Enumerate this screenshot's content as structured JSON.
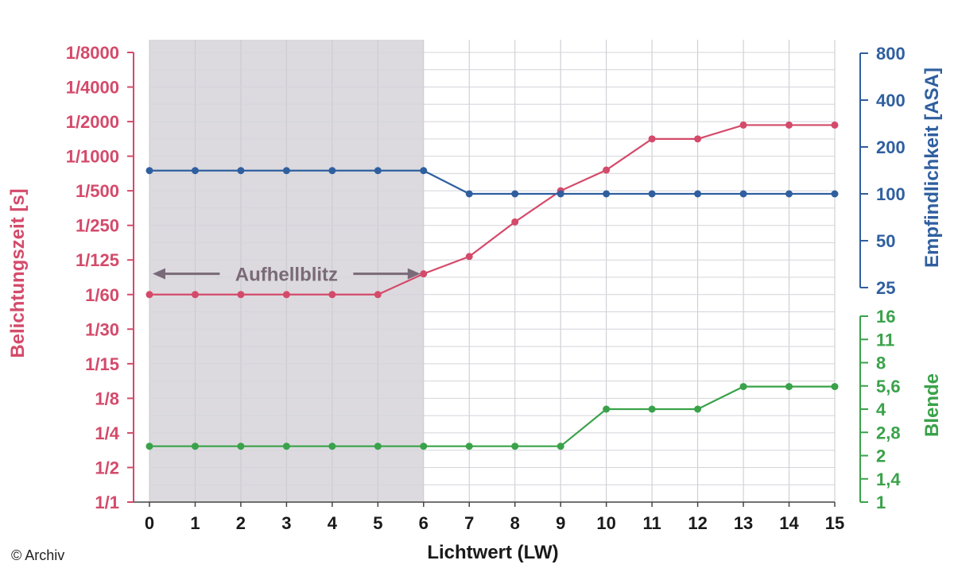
{
  "chart_data": {
    "type": "line",
    "x": [
      0,
      1,
      2,
      3,
      4,
      5,
      6,
      7,
      8,
      9,
      10,
      11,
      12,
      13,
      14,
      15
    ],
    "xlabel": "Lichtwert (LW)",
    "xticks": [
      "0",
      "1",
      "2",
      "3",
      "4",
      "5",
      "6",
      "7",
      "8",
      "9",
      "10",
      "11",
      "12",
      "13",
      "14",
      "15"
    ],
    "left_axis": {
      "label": "Belichtungszeit [s]",
      "ticks": [
        "1/1",
        "1/2",
        "1/4",
        "1/8",
        "1/15",
        "1/30",
        "1/60",
        "1/125",
        "1/250",
        "1/500",
        "1/1000",
        "1/2000",
        "1/4000",
        "1/8000"
      ],
      "ylim_stops": [
        0,
        13
      ]
    },
    "right_top_axis": {
      "label": "Empfindlichkeit [ASA]",
      "ticks": [
        "25",
        "50",
        "100",
        "200",
        "400",
        "800"
      ],
      "ylim_stops": [
        0,
        5
      ]
    },
    "right_bottom_axis": {
      "label": "Blende",
      "ticks": [
        "1",
        "1,4",
        "2",
        "2,8",
        "4",
        "5,6",
        "8",
        "11",
        "16"
      ],
      "ylim_stops": [
        0,
        8
      ]
    },
    "series": [
      {
        "axis": "left",
        "color": "#d44a6a",
        "values_stops": [
          6,
          6,
          6,
          6,
          6,
          6,
          6.6,
          7.1,
          8.1,
          9.0,
          9.6,
          10.5,
          10.5,
          10.9,
          10.9,
          10.9
        ]
      },
      {
        "axis": "right_top",
        "color": "#2f5f9f",
        "values": [
          141,
          141,
          141,
          141,
          141,
          141,
          141,
          100,
          100,
          100,
          100,
          100,
          100,
          100,
          100,
          100
        ]
      },
      {
        "axis": "right_bottom",
        "color": "#3aa24a",
        "values": [
          2.3,
          2.3,
          2.3,
          2.3,
          2.3,
          2.3,
          2.3,
          2.3,
          2.3,
          2.3,
          4,
          4,
          4,
          5.6,
          5.6,
          5.6
        ]
      }
    ],
    "shaded_region": {
      "x_from": 0,
      "x_to": 6,
      "color": "#dcdadf"
    },
    "annotation": {
      "text": "Aufhellblitz",
      "x_from": 0,
      "x_to": 6,
      "y_stop": 6.6
    },
    "grid": true
  },
  "credit": "© Archiv"
}
